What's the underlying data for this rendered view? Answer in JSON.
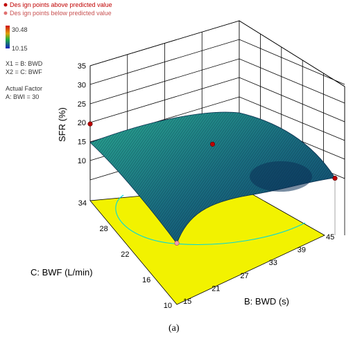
{
  "legend": {
    "above_label": "Des ign points  above predicted value",
    "below_label": "Des ign points  below predicted value",
    "above_color": "#c00000",
    "below_color": "#e07070",
    "scale_max": "30.48",
    "scale_min": "10.15",
    "x1_def": "X1 = B: BWD",
    "x2_def": "X2 = C: BWF",
    "actual_factor_title": "Actual Factor",
    "actual_factor_value": "A: BWI = 30"
  },
  "caption": "(a)",
  "chart_data": {
    "type": "surface",
    "zlabel": "SFR (%)",
    "xlabel": "B: BWD (s)",
    "ylabel": "C: BWF (L/min)",
    "z_ticks": [
      "10",
      "15",
      "20",
      "25",
      "30",
      "35"
    ],
    "x_ticks": [
      "15",
      "21",
      "27",
      "33",
      "39",
      "45"
    ],
    "y_ticks": [
      "10",
      "16",
      "22",
      "28",
      "34"
    ],
    "zlim": [
      10,
      35
    ],
    "xlim": [
      15,
      45
    ],
    "ylim": [
      10,
      34
    ],
    "surface_corners": [
      {
        "bwd": 15,
        "bwf": 34,
        "sfr": 15.3
      },
      {
        "bwd": 45,
        "bwf": 34,
        "sfr": 24.0
      },
      {
        "bwd": 15,
        "bwf": 10,
        "sfr": 10.5
      },
      {
        "bwd": 45,
        "bwf": 10,
        "sfr": 10.3
      }
    ],
    "design_points": [
      {
        "bwd": 15,
        "bwf": 34,
        "sfr": 15.3,
        "position": "above"
      },
      {
        "bwd": 30,
        "bwf": 22,
        "sfr": 14.6,
        "position": "above"
      },
      {
        "bwd": 45,
        "bwf": 10,
        "sfr": 10.3,
        "position": "above"
      },
      {
        "bwd": 15,
        "bwf": 10,
        "sfr": 10.5,
        "position": "below"
      }
    ],
    "colors": {
      "surface_low": "#0a3a66",
      "surface_high": "#2fb89a",
      "floor": "#f2f200",
      "contour": "#00d8e0"
    }
  }
}
